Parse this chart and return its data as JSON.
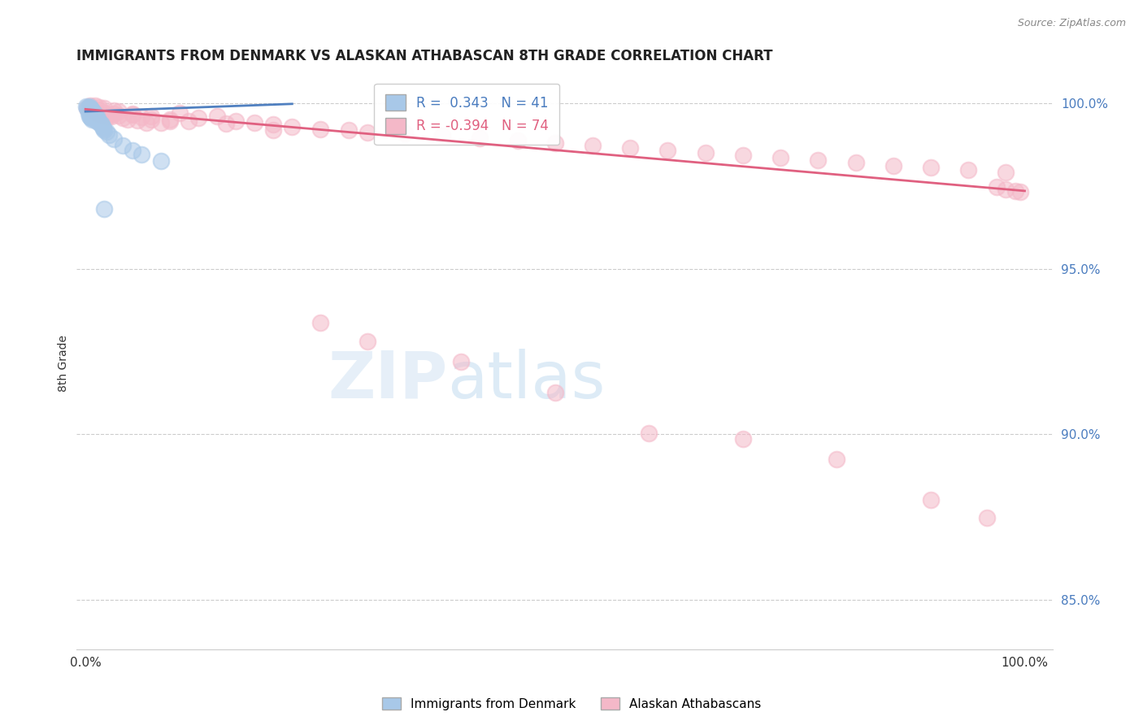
{
  "title": "IMMIGRANTS FROM DENMARK VS ALASKAN ATHABASCAN 8TH GRADE CORRELATION CHART",
  "source": "Source: ZipAtlas.com",
  "ylabel": "8th Grade",
  "blue_R": 0.343,
  "blue_N": 41,
  "pink_R": -0.394,
  "pink_N": 74,
  "blue_color": "#a8c8e8",
  "pink_color": "#f4b8c8",
  "blue_line_color": "#5080c0",
  "pink_line_color": "#e06080",
  "xlim": [
    0.0,
    1.0
  ],
  "ylim": [
    0.835,
    1.008
  ],
  "yticks": [
    0.85,
    0.9,
    0.95,
    1.0
  ],
  "ytick_labels": [
    "85.0%",
    "90.0%",
    "95.0%",
    "100.0%"
  ],
  "blue_points_x": [
    0.001,
    0.002,
    0.003,
    0.003,
    0.004,
    0.004,
    0.004,
    0.005,
    0.005,
    0.005,
    0.006,
    0.006,
    0.006,
    0.007,
    0.007,
    0.007,
    0.008,
    0.008,
    0.009,
    0.009,
    0.01,
    0.01,
    0.011,
    0.012,
    0.012,
    0.013,
    0.014,
    0.015,
    0.016,
    0.017,
    0.018,
    0.019,
    0.02,
    0.022,
    0.025,
    0.03,
    0.04,
    0.05,
    0.06,
    0.08,
    0.02
  ],
  "blue_points_y": [
    0.999,
    0.9985,
    0.9988,
    0.997,
    0.999,
    0.9975,
    0.996,
    0.9985,
    0.9972,
    0.9958,
    0.9982,
    0.9968,
    0.9955,
    0.9978,
    0.9965,
    0.995,
    0.9975,
    0.996,
    0.997,
    0.9955,
    0.9965,
    0.995,
    0.9958,
    0.996,
    0.9945,
    0.9952,
    0.9948,
    0.9942,
    0.9938,
    0.9935,
    0.993,
    0.9925,
    0.992,
    0.9915,
    0.9905,
    0.9892,
    0.9872,
    0.9858,
    0.9845,
    0.9825,
    0.968
  ],
  "pink_points_x": [
    0.002,
    0.005,
    0.007,
    0.009,
    0.011,
    0.013,
    0.015,
    0.018,
    0.02,
    0.023,
    0.025,
    0.028,
    0.03,
    0.035,
    0.04,
    0.045,
    0.05,
    0.055,
    0.06,
    0.065,
    0.07,
    0.08,
    0.09,
    0.1,
    0.12,
    0.14,
    0.16,
    0.18,
    0.2,
    0.22,
    0.25,
    0.28,
    0.3,
    0.34,
    0.38,
    0.42,
    0.46,
    0.5,
    0.54,
    0.58,
    0.62,
    0.66,
    0.7,
    0.74,
    0.78,
    0.82,
    0.86,
    0.9,
    0.94,
    0.98,
    0.01,
    0.015,
    0.02,
    0.03,
    0.035,
    0.05,
    0.07,
    0.09,
    0.11,
    0.15,
    0.2,
    0.25,
    0.3,
    0.4,
    0.5,
    0.6,
    0.7,
    0.8,
    0.9,
    0.96,
    0.97,
    0.98,
    0.99,
    0.995
  ],
  "pink_points_y": [
    0.9985,
    0.9992,
    0.998,
    0.9975,
    0.9972,
    0.9968,
    0.998,
    0.9962,
    0.997,
    0.9958,
    0.9965,
    0.996,
    0.9968,
    0.9962,
    0.9955,
    0.995,
    0.9965,
    0.9948,
    0.9958,
    0.9942,
    0.995,
    0.994,
    0.9945,
    0.997,
    0.9955,
    0.996,
    0.9945,
    0.994,
    0.9935,
    0.9928,
    0.9922,
    0.9918,
    0.9912,
    0.9908,
    0.9902,
    0.9895,
    0.9888,
    0.988,
    0.9872,
    0.9865,
    0.9858,
    0.985,
    0.9842,
    0.9835,
    0.9828,
    0.982,
    0.9812,
    0.9805,
    0.9798,
    0.979,
    0.9992,
    0.9988,
    0.9985,
    0.9978,
    0.9975,
    0.9968,
    0.996,
    0.9952,
    0.9945,
    0.9938,
    0.992,
    0.9338,
    0.928,
    0.922,
    0.9125,
    0.9002,
    0.8985,
    0.8925,
    0.8802,
    0.8748,
    0.9748,
    0.974,
    0.9735,
    0.9732
  ]
}
